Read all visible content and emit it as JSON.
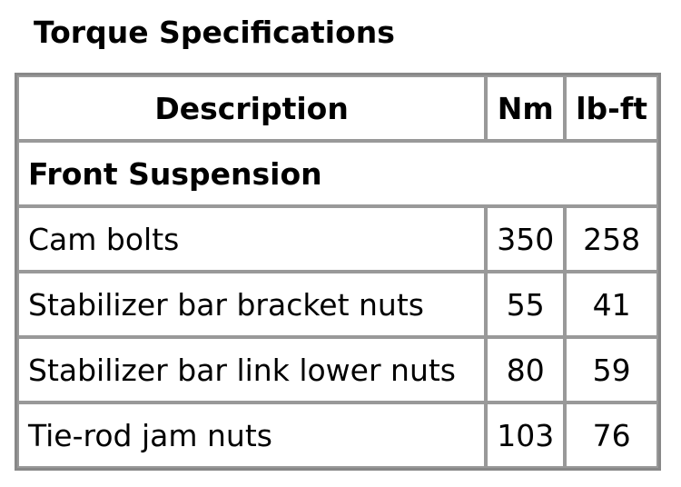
{
  "title": "Torque Specifications",
  "table": {
    "headers": [
      "Description",
      "Nm",
      "lb-ft"
    ],
    "section": "Front Suspension",
    "rows": [
      {
        "description": "Cam bolts",
        "nm": "350",
        "lbft": "258"
      },
      {
        "description": "Stabilizer bar bracket nuts",
        "nm": "55",
        "lbft": "41"
      },
      {
        "description": "Stabilizer bar link lower nuts",
        "nm": "80",
        "lbft": "59"
      },
      {
        "description": "Tie-rod jam nuts",
        "nm": "103",
        "lbft": "76"
      }
    ]
  }
}
